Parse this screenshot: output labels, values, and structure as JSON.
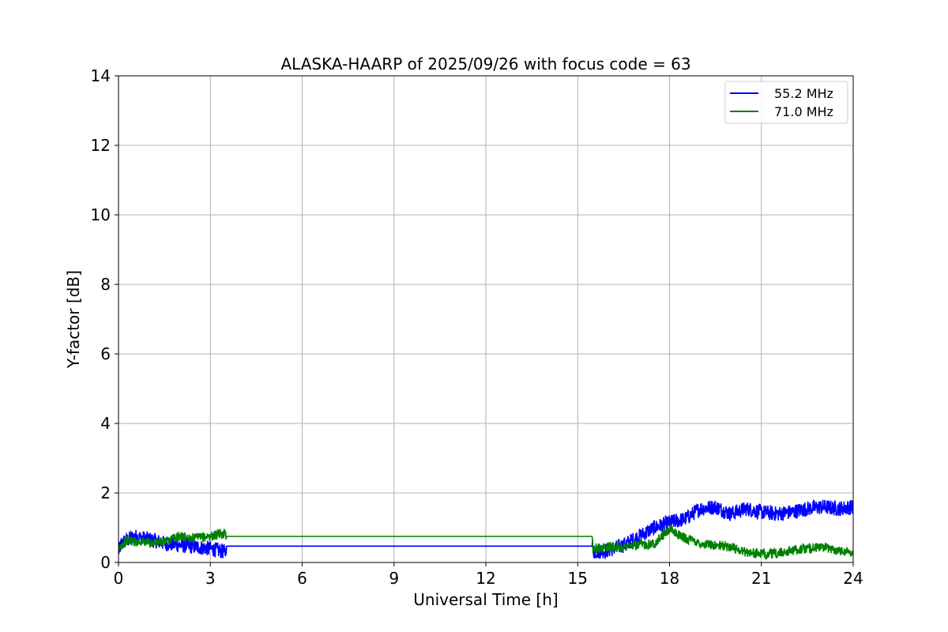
{
  "chart_data": {
    "type": "line",
    "title": "ALASKA-HAARP of 2025/09/26 with focus code = 63",
    "xlabel": "Universal Time [h]",
    "ylabel": "Y-factor [dB]",
    "xlim": [
      0,
      24
    ],
    "ylim": [
      0,
      14
    ],
    "xticks": [
      0,
      3,
      6,
      9,
      12,
      15,
      18,
      21,
      24
    ],
    "yticks": [
      0,
      2,
      4,
      6,
      8,
      10,
      12,
      14
    ],
    "xtick_labels": [
      "0",
      "3",
      "6",
      "9",
      "12",
      "15",
      "18",
      "21",
      "24"
    ],
    "ytick_labels": [
      "0",
      "2",
      "4",
      "6",
      "8",
      "10",
      "12",
      "14"
    ],
    "grid": true,
    "legend_position": "top-right",
    "series": [
      {
        "name": "55.2 MHz",
        "color": "#0000ff",
        "x": [
          0,
          0.1,
          0.3,
          0.5,
          0.8,
          1.1,
          1.5,
          2.0,
          2.5,
          3.0,
          3.5,
          3.51,
          15.49,
          15.5,
          16.0,
          16.5,
          17.0,
          17.5,
          18.0,
          18.5,
          19.0,
          19.5,
          20.0,
          20.5,
          21.0,
          21.5,
          22.0,
          22.5,
          23.0,
          23.5,
          24.0
        ],
        "y": [
          0.3,
          0.55,
          0.65,
          0.75,
          0.7,
          0.65,
          0.55,
          0.5,
          0.45,
          0.4,
          0.3,
          0.47,
          0.47,
          0.3,
          0.35,
          0.5,
          0.75,
          1.0,
          1.15,
          1.25,
          1.55,
          1.6,
          1.4,
          1.55,
          1.45,
          1.4,
          1.45,
          1.55,
          1.6,
          1.55,
          1.6
        ]
      },
      {
        "name": "71.0 MHz",
        "color": "#008000",
        "x": [
          0,
          0.1,
          0.3,
          0.5,
          0.8,
          1.1,
          1.5,
          2.0,
          2.5,
          3.0,
          3.5,
          3.51,
          15.49,
          15.5,
          16.0,
          16.5,
          17.0,
          17.5,
          18.0,
          18.5,
          19.0,
          19.5,
          20.0,
          20.5,
          21.0,
          21.5,
          22.0,
          22.5,
          23.0,
          23.5,
          24.0
        ],
        "y": [
          0.35,
          0.5,
          0.65,
          0.6,
          0.6,
          0.55,
          0.6,
          0.75,
          0.7,
          0.75,
          0.85,
          0.75,
          0.75,
          0.4,
          0.45,
          0.45,
          0.5,
          0.55,
          0.95,
          0.7,
          0.55,
          0.5,
          0.45,
          0.3,
          0.25,
          0.25,
          0.35,
          0.4,
          0.45,
          0.35,
          0.3
        ]
      }
    ]
  }
}
